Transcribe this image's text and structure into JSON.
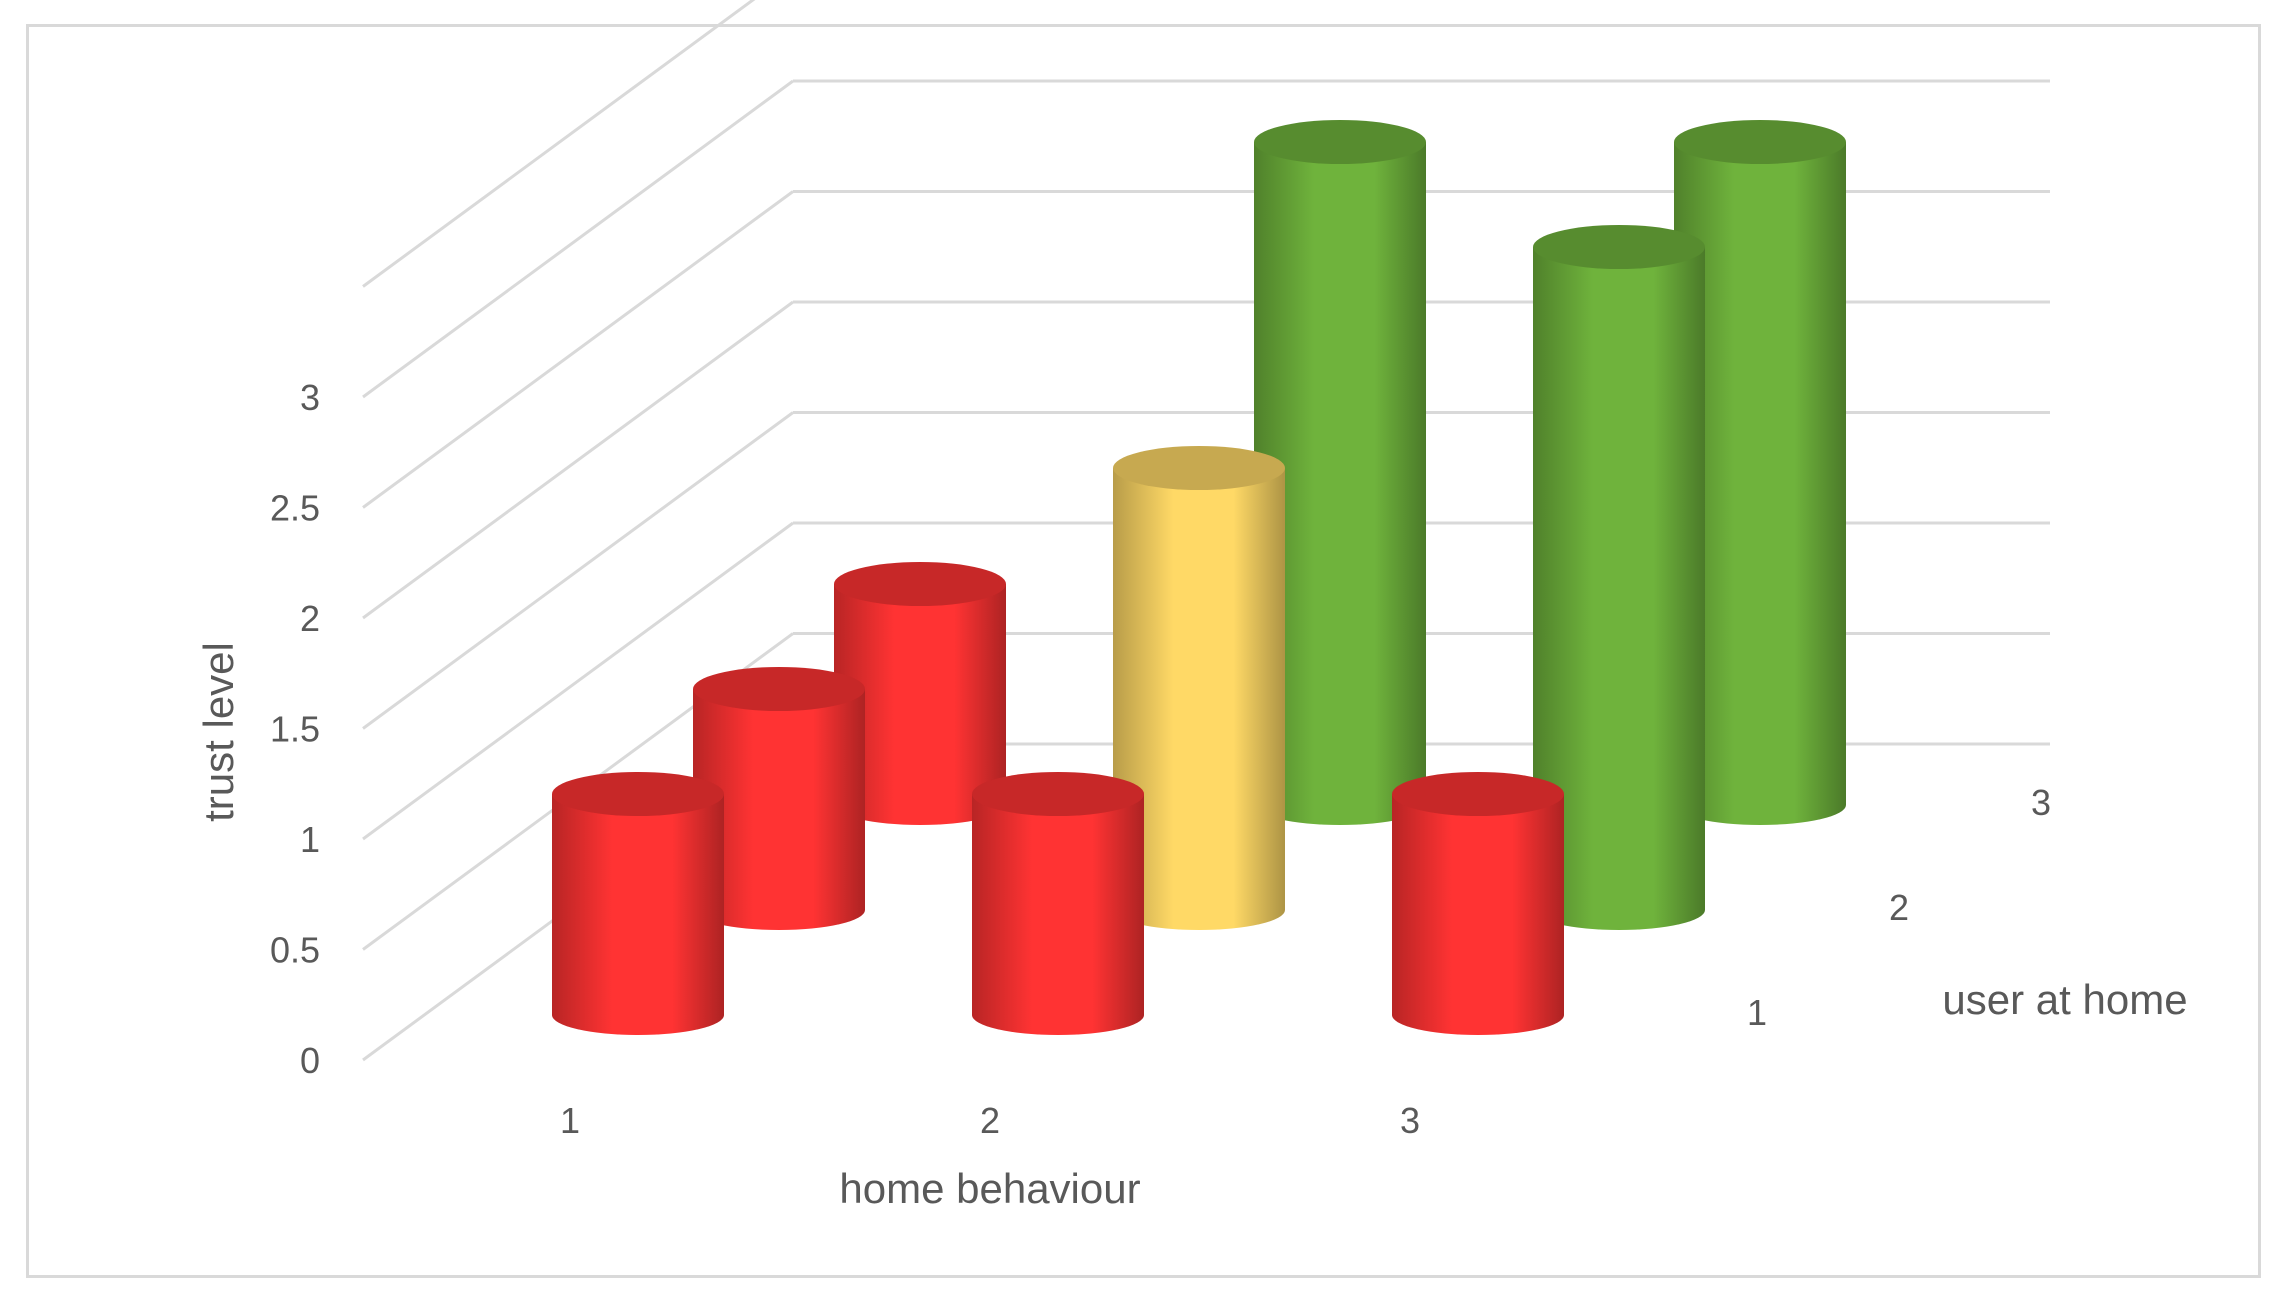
{
  "chart_data": {
    "type": "bar",
    "style": "3d-cylinder",
    "title": "",
    "xlabel": "home behaviour",
    "zlabel": "user at home",
    "ylabel": "trust level",
    "x_categories": [
      "1",
      "2",
      "3"
    ],
    "z_categories": [
      "1",
      "2",
      "3"
    ],
    "y_ticks": [
      "0",
      "0.5",
      "1",
      "1.5",
      "2",
      "2.5",
      "3"
    ],
    "ylim": [
      0,
      3
    ],
    "grid": true,
    "legend": "none",
    "colors": {
      "low": "#ff3333",
      "medium": "#ffd966",
      "high": "#6fb33c"
    },
    "points": [
      {
        "x": "1",
        "z": "1",
        "value": 1,
        "level": "low"
      },
      {
        "x": "1",
        "z": "2",
        "value": 1,
        "level": "low"
      },
      {
        "x": "1",
        "z": "3",
        "value": 1,
        "level": "low"
      },
      {
        "x": "2",
        "z": "1",
        "value": 1,
        "level": "low"
      },
      {
        "x": "2",
        "z": "2",
        "value": 2,
        "level": "medium"
      },
      {
        "x": "2",
        "z": "3",
        "value": 3,
        "level": "high"
      },
      {
        "x": "3",
        "z": "1",
        "value": 1,
        "level": "low"
      },
      {
        "x": "3",
        "z": "2",
        "value": 3,
        "level": "high"
      },
      {
        "x": "3",
        "z": "3",
        "value": 3,
        "level": "high"
      }
    ]
  }
}
